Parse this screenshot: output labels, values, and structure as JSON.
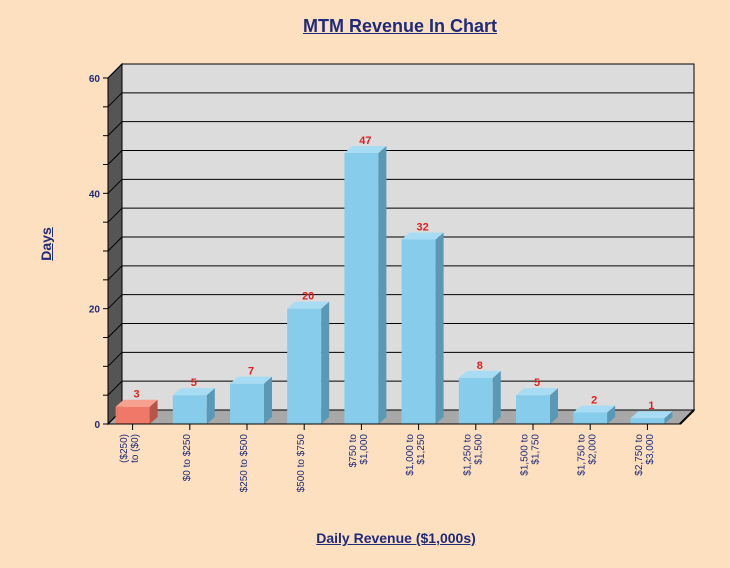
{
  "chart_data": {
    "type": "bar",
    "title": "MTM Revenue In Chart",
    "xlabel": "Daily Revenue ($1,000s)",
    "ylabel": "Days",
    "ylim": [
      0,
      60
    ],
    "yticks": [
      0,
      20,
      40,
      60
    ],
    "grid": true,
    "categories": [
      [
        "($250)",
        "to ($0)"
      ],
      [
        "$0 to $250"
      ],
      [
        "$250 to $500"
      ],
      [
        "$500 to $750"
      ],
      [
        "$750 to",
        "$1,000"
      ],
      [
        "$1,000 to",
        "$1,250"
      ],
      [
        "$1,250 to",
        "$1,500"
      ],
      [
        "$1,500 to",
        "$1,750"
      ],
      [
        "$1,750 to",
        "$2,000"
      ],
      [
        "$2,750 to",
        "$3,000"
      ]
    ],
    "values": [
      3,
      5,
      7,
      20,
      47,
      32,
      8,
      5,
      2,
      1
    ],
    "colors": {
      "negative": "#f07868",
      "positive": "#88ccec",
      "plot_background": "#dcdcdc",
      "grid": "#000000",
      "data_label": "#e02020"
    }
  }
}
